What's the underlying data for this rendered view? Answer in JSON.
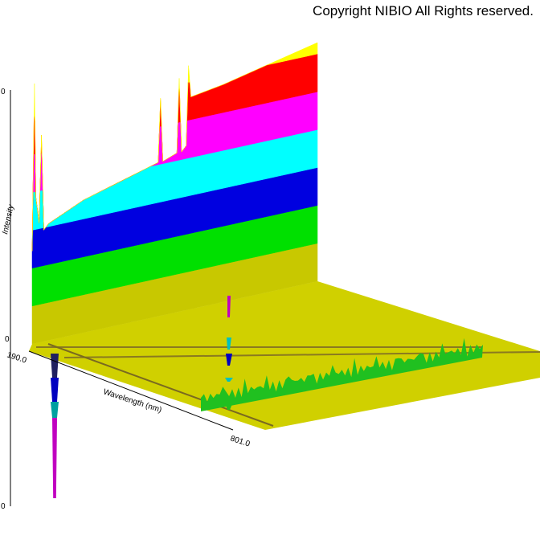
{
  "copyright": "Copyright NIBIO All Rights reserved.",
  "colors": {
    "background": "#ffffff",
    "band_colors": [
      "#c8c800",
      "#00e000",
      "#0000e0",
      "#00ffff",
      "#ff00ff",
      "#ff0000",
      "#ffff00"
    ],
    "floor": "#d0d000"
  },
  "chart_data": {
    "type": "area",
    "title": "",
    "xlabel": "Wavelength (nm)",
    "ylabel": "Intensity",
    "x_ticks": [
      "190.0",
      "801.0"
    ],
    "y_top_tick": "0",
    "y_bottom_tick": "0",
    "y_zero_tick": "0",
    "xlim": [
      190.0,
      801.0
    ],
    "series": [
      {
        "values": [
          {
            "x": 190,
            "y": 0.35
          },
          {
            "x": 195,
            "y": 0.98
          },
          {
            "x": 198,
            "y": 0.55
          },
          {
            "x": 205,
            "y": 0.45
          },
          {
            "x": 210,
            "y": 0.78
          },
          {
            "x": 215,
            "y": 0.42
          },
          {
            "x": 225,
            "y": 0.44
          },
          {
            "x": 300,
            "y": 0.5
          },
          {
            "x": 400,
            "y": 0.55
          },
          {
            "x": 460,
            "y": 0.58
          },
          {
            "x": 465,
            "y": 0.82
          },
          {
            "x": 470,
            "y": 0.58
          },
          {
            "x": 500,
            "y": 0.6
          },
          {
            "x": 505,
            "y": 0.88
          },
          {
            "x": 510,
            "y": 0.6
          },
          {
            "x": 520,
            "y": 0.62
          },
          {
            "x": 525,
            "y": 0.92
          },
          {
            "x": 530,
            "y": 0.8
          },
          {
            "x": 600,
            "y": 0.82
          },
          {
            "x": 700,
            "y": 0.86
          },
          {
            "x": 801,
            "y": 0.9
          }
        ]
      }
    ]
  }
}
